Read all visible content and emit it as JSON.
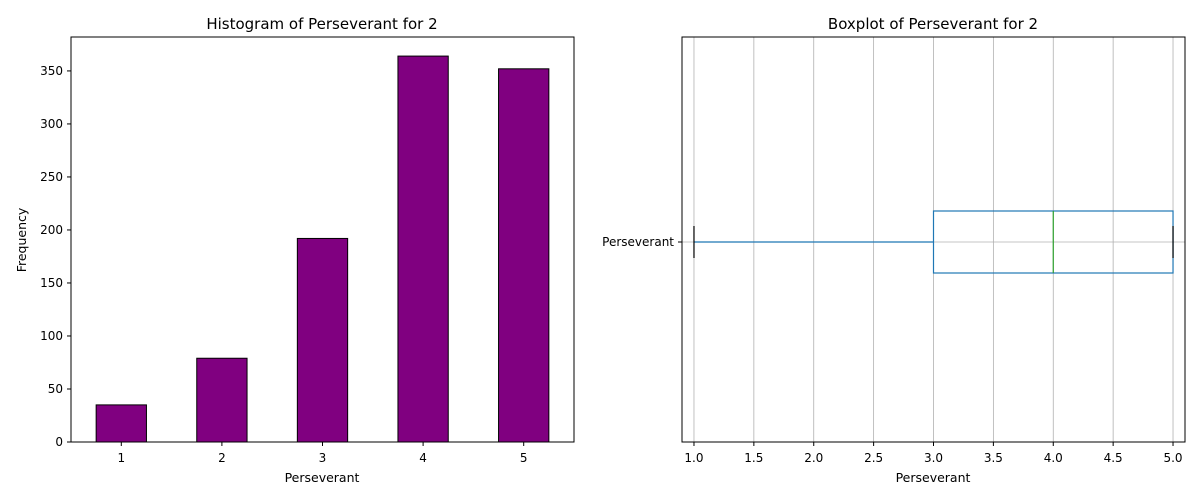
{
  "chart_data": [
    {
      "type": "bar",
      "title": "Histogram of Perseverant for 2",
      "xlabel": "Perseverant",
      "ylabel": "Frequency",
      "categories": [
        "1",
        "2",
        "3",
        "4",
        "5"
      ],
      "values": [
        35,
        79,
        192,
        364,
        352
      ],
      "ylim": [
        0,
        382
      ],
      "yticks": [
        "0",
        "50",
        "100",
        "150",
        "200",
        "250",
        "300",
        "350"
      ],
      "grid": false,
      "colors": {
        "bar": "#800080",
        "edge": "#000000"
      }
    },
    {
      "type": "boxplot",
      "title": "Boxplot of Perseverant for 2",
      "xlabel": "Perseverant",
      "category_label": "Perseverant",
      "stats": {
        "min": 1.0,
        "q1": 3.0,
        "median": 4.0,
        "q3": 5.0,
        "max": 5.0
      },
      "xlim": [
        0.9,
        5.1
      ],
      "xticks": [
        "1.0",
        "1.5",
        "2.0",
        "2.5",
        "3.0",
        "3.5",
        "4.0",
        "4.5",
        "5.0"
      ],
      "grid": true,
      "colors": {
        "box": "#1f77b4",
        "median": "#2ca02c",
        "whisker": "#1f77b4",
        "cap": "#000000",
        "grid": "#b0b0b0"
      }
    }
  ]
}
